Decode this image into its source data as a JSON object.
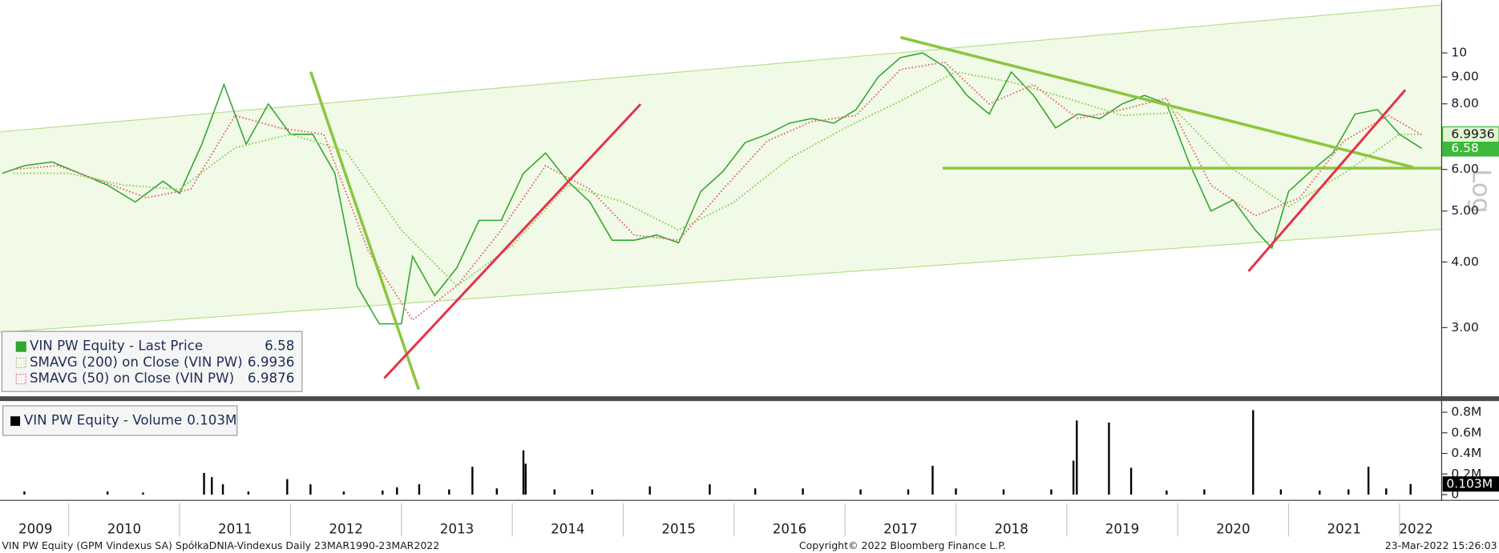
{
  "chart_data": [
    {
      "type": "line",
      "log_scale": true,
      "grid": false,
      "axis_label": "Log",
      "xlim": [
        2009.38,
        2022.38
      ],
      "ylim": [
        2.22,
        12.6
      ],
      "yticks": [
        {
          "value": 3,
          "label": "3.00"
        },
        {
          "value": 4,
          "label": "4.00"
        },
        {
          "value": 5,
          "label": "5.00"
        },
        {
          "value": 6,
          "label": "6.00"
        },
        {
          "value": 8,
          "label": "8.00"
        },
        {
          "value": 9,
          "label": "9.00"
        },
        10
      ],
      "series": [
        {
          "name": "VIN PW Equity - Last Price",
          "color": "#2fa62f",
          "style": "solid",
          "x": [
            2009.4,
            2009.6,
            2009.85,
            2010.1,
            2010.35,
            2010.6,
            2010.85,
            2011.0,
            2011.2,
            2011.4,
            2011.6,
            2011.8,
            2012.0,
            2012.2,
            2012.4,
            2012.6,
            2012.8,
            2013.0,
            2013.1,
            2013.3,
            2013.5,
            2013.7,
            2013.9,
            2014.1,
            2014.3,
            2014.5,
            2014.7,
            2014.9,
            2015.1,
            2015.3,
            2015.5,
            2015.7,
            2015.9,
            2016.1,
            2016.3,
            2016.5,
            2016.7,
            2016.9,
            2017.1,
            2017.3,
            2017.5,
            2017.7,
            2017.9,
            2018.1,
            2018.3,
            2018.5,
            2018.7,
            2018.9,
            2019.1,
            2019.3,
            2019.5,
            2019.7,
            2019.9,
            2020.1,
            2020.3,
            2020.5,
            2020.7,
            2020.85,
            2021.0,
            2021.2,
            2021.4,
            2021.6,
            2021.8,
            2022.0,
            2022.2
          ],
          "values": [
            5.9,
            6.1,
            6.2,
            5.9,
            5.6,
            5.2,
            5.7,
            5.4,
            6.7,
            8.7,
            6.7,
            8.0,
            7.0,
            7.0,
            5.9,
            3.6,
            3.05,
            3.05,
            4.1,
            3.45,
            3.9,
            4.8,
            4.8,
            5.9,
            6.45,
            5.7,
            5.2,
            4.4,
            4.4,
            4.5,
            4.35,
            5.45,
            5.95,
            6.75,
            7.0,
            7.35,
            7.5,
            7.35,
            7.8,
            9.0,
            9.8,
            10.0,
            9.4,
            8.3,
            7.65,
            9.2,
            8.3,
            7.2,
            7.65,
            7.5,
            8.0,
            8.3,
            8.0,
            6.2,
            5.0,
            5.25,
            4.6,
            4.25,
            5.45,
            5.95,
            6.45,
            7.65,
            7.8,
            7.0,
            6.58
          ]
        },
        {
          "name": "SMAVG (200)  on Close (VIN PW)",
          "color": "#8ccf5a",
          "style": "dotted",
          "x": [
            2009.5,
            2010.0,
            2010.5,
            2011.0,
            2011.5,
            2012.0,
            2012.5,
            2013.0,
            2013.5,
            2014.0,
            2014.5,
            2015.0,
            2015.5,
            2016.0,
            2016.5,
            2017.0,
            2017.5,
            2018.0,
            2018.5,
            2019.0,
            2019.5,
            2020.0,
            2020.5,
            2021.0,
            2021.5,
            2022.0,
            2022.2
          ],
          "values": [
            5.9,
            5.9,
            5.6,
            5.5,
            6.6,
            7.0,
            6.5,
            4.6,
            3.6,
            4.3,
            5.6,
            5.2,
            4.6,
            5.2,
            6.3,
            7.2,
            8.1,
            9.2,
            8.8,
            8.2,
            7.6,
            7.7,
            6.0,
            5.1,
            5.9,
            7.0,
            6.9936
          ]
        },
        {
          "name": "SMAVG (50)  on Close (VIN PW)",
          "color": "#e0707a",
          "style": "dotted",
          "x": [
            2009.5,
            2009.9,
            2010.3,
            2010.7,
            2011.1,
            2011.5,
            2011.9,
            2012.3,
            2012.7,
            2013.1,
            2013.5,
            2013.9,
            2014.3,
            2014.7,
            2015.1,
            2015.5,
            2015.9,
            2016.3,
            2016.7,
            2017.1,
            2017.5,
            2017.9,
            2018.3,
            2018.7,
            2019.1,
            2019.5,
            2019.9,
            2020.3,
            2020.7,
            2021.1,
            2021.5,
            2021.9,
            2022.2
          ],
          "values": [
            6.0,
            6.1,
            5.7,
            5.3,
            5.5,
            7.6,
            7.2,
            7.0,
            4.2,
            3.1,
            3.6,
            4.6,
            6.1,
            5.5,
            4.5,
            4.4,
            5.5,
            6.8,
            7.4,
            7.6,
            9.3,
            9.6,
            8.0,
            8.7,
            7.5,
            7.8,
            8.2,
            5.6,
            4.9,
            5.3,
            6.8,
            7.6,
            6.9876
          ]
        }
      ]
    },
    {
      "type": "bar",
      "grid": false,
      "xlim": [
        2009.38,
        2022.38
      ],
      "ylim": [
        0,
        0.89
      ],
      "yticks": [
        0,
        {
          "value": 0.2,
          "label": "0.2M"
        },
        {
          "value": 0.4,
          "label": "0.4M"
        },
        {
          "value": 0.6,
          "label": "0.6M"
        },
        {
          "value": 0.8,
          "label": "0.8M"
        }
      ],
      "xticks": [
        {
          "value": 2009.7,
          "label": "2009"
        },
        {
          "value": 2010.5,
          "label": "2010"
        },
        {
          "value": 2011.5,
          "label": "2011"
        },
        {
          "value": 2012.5,
          "label": "2012"
        },
        {
          "value": 2013.5,
          "label": "2013"
        },
        {
          "value": 2014.5,
          "label": "2014"
        },
        {
          "value": 2015.5,
          "label": "2015"
        },
        {
          "value": 2016.5,
          "label": "2016"
        },
        {
          "value": 2017.5,
          "label": "2017"
        },
        {
          "value": 2018.5,
          "label": "2018"
        },
        {
          "value": 2019.5,
          "label": "2019"
        },
        {
          "value": 2020.5,
          "label": "2020"
        },
        {
          "value": 2021.5,
          "label": "2021"
        },
        {
          "value": 2022.15,
          "label": "2022"
        }
      ],
      "series": [
        {
          "name": "VIN PW Equity - Volume",
          "color": "#000000",
          "x": [
            2009.6,
            2010.35,
            2010.67,
            2011.22,
            2011.29,
            2011.39,
            2011.62,
            2011.97,
            2012.18,
            2012.48,
            2012.83,
            2012.96,
            2013.16,
            2013.43,
            2013.64,
            2013.86,
            2014.1,
            2014.12,
            2014.38,
            2014.72,
            2015.24,
            2015.78,
            2016.19,
            2016.62,
            2017.14,
            2017.57,
            2017.79,
            2018.0,
            2018.43,
            2018.86,
            2019.06,
            2019.09,
            2019.38,
            2019.58,
            2019.9,
            2020.24,
            2020.68,
            2020.93,
            2021.28,
            2021.54,
            2021.72,
            2021.88,
            2022.1
          ],
          "values": [
            0.03,
            0.03,
            0.02,
            0.21,
            0.17,
            0.1,
            0.03,
            0.15,
            0.1,
            0.03,
            0.04,
            0.07,
            0.1,
            0.05,
            0.27,
            0.06,
            0.43,
            0.3,
            0.05,
            0.05,
            0.08,
            0.1,
            0.06,
            0.06,
            0.05,
            0.05,
            0.28,
            0.06,
            0.05,
            0.05,
            0.33,
            0.72,
            0.7,
            0.26,
            0.04,
            0.05,
            0.82,
            0.05,
            0.04,
            0.05,
            0.27,
            0.06,
            0.103
          ],
          "value_labels": [
            null,
            null,
            null,
            null,
            null,
            null,
            null,
            null,
            null,
            null,
            null,
            null,
            null,
            null,
            null,
            null,
            null,
            null,
            null,
            null,
            null,
            null,
            null,
            null,
            null,
            null,
            null,
            null,
            null,
            null,
            null,
            null,
            null,
            null,
            null,
            null,
            null,
            null,
            null,
            null,
            null,
            null,
            "0.103M"
          ]
        }
      ]
    }
  ],
  "footer": {
    "left": "VIN PW Equity (GPM Vindexus SA) SpółkaDNIA-Vindexus  Daily 23MAR1990-23MAR2022",
    "center": "Copyright© 2022 Bloomberg Finance L.P.",
    "right": "23-Mar-2022 15:26:03"
  }
}
